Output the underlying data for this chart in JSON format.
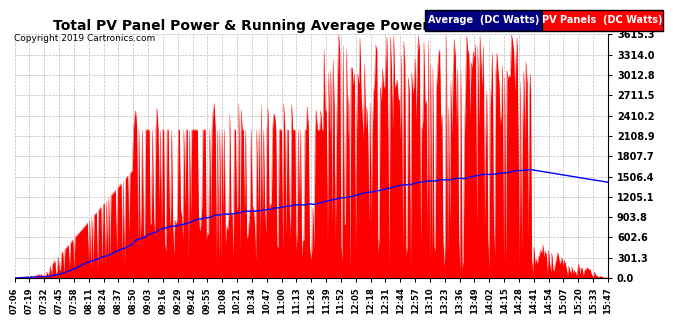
{
  "title": "Total PV Panel Power & Running Average Power Tue Nov 26 15:49",
  "copyright": "Copyright 2019 Cartronics.com",
  "ylabel_right_ticks": [
    0.0,
    301.3,
    602.6,
    903.8,
    1205.1,
    1506.4,
    1807.7,
    2108.9,
    2410.2,
    2711.5,
    3012.8,
    3314.0,
    3615.3
  ],
  "ymax": 3615.3,
  "ymin": 0.0,
  "pv_color": "#FF0000",
  "avg_color": "#0000FF",
  "background_color": "#FFFFFF",
  "grid_color": "#BBBBBB",
  "legend_avg_bg": "#000080",
  "legend_pv_bg": "#FF0000",
  "legend_avg_text": "Average  (DC Watts)",
  "legend_pv_text": "PV Panels  (DC Watts)",
  "x_labels": [
    "07:06",
    "07:19",
    "07:32",
    "07:45",
    "07:58",
    "08:11",
    "08:24",
    "08:37",
    "08:50",
    "09:03",
    "09:16",
    "09:29",
    "09:42",
    "09:55",
    "10:08",
    "10:21",
    "10:34",
    "10:47",
    "11:00",
    "11:13",
    "11:26",
    "11:39",
    "11:52",
    "12:05",
    "12:18",
    "12:31",
    "12:44",
    "12:57",
    "13:10",
    "13:23",
    "13:36",
    "13:49",
    "14:02",
    "14:15",
    "14:28",
    "14:41",
    "14:54",
    "15:07",
    "15:20",
    "15:33",
    "15:47"
  ]
}
